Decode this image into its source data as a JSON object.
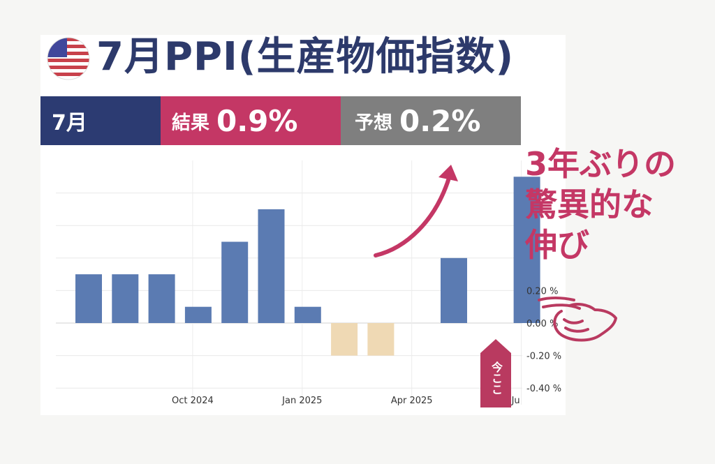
{
  "title": "7月PPI(生産物価指数)",
  "banner": {
    "month": "7月",
    "result_label": "結果",
    "result_value": "0.9%",
    "forecast_label": "予想",
    "forecast_value": "0.2%",
    "colors": {
      "month": "#2c3b72",
      "result": "#c43765",
      "forecast": "#7f7f7f"
    }
  },
  "annotation": [
    "3年ぶりの",
    "驚異的な",
    "伸び"
  ],
  "now_tag": "今ここ",
  "icons": {
    "flag": "us-flag-icon",
    "arrow": "curved-arrow-icon",
    "hand": "pointing-hand-icon"
  },
  "chart_data": {
    "type": "bar",
    "x": [
      "2024-07",
      "2024-08",
      "2024-09",
      "2024-10",
      "2024-11",
      "2024-12",
      "2025-01",
      "2025-02",
      "2025-03",
      "2025-04",
      "2025-05",
      "2025-06",
      "2025-07"
    ],
    "values": [
      0.3,
      0.3,
      0.3,
      0.1,
      0.5,
      0.7,
      0.1,
      -0.2,
      -0.2,
      null,
      0.4,
      null,
      0.9
    ],
    "ylim": [
      -0.45,
      0.95
    ],
    "yticks": [
      -0.4,
      -0.2,
      0.0,
      0.2
    ],
    "ytick_labels": [
      "-0.40 %",
      "-0.20 %",
      "0.00 %",
      "0.20 %"
    ],
    "xtick_labels": [
      "Oct 2024",
      "Jan 2025",
      "Apr 2025",
      "Ju"
    ],
    "colors": {
      "positive": "#5b7bb2",
      "negative": "#efd9b4"
    },
    "grid": true
  }
}
